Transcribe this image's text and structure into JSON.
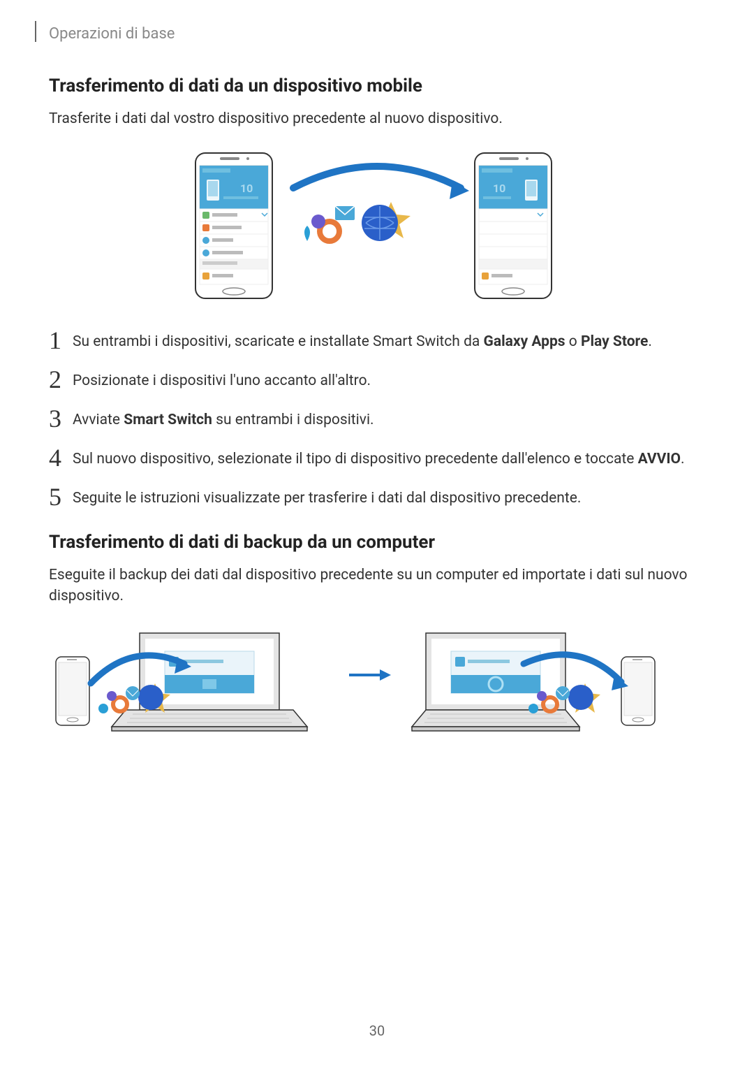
{
  "header": {
    "breadcrumb": "Operazioni di base"
  },
  "section1": {
    "title": "Trasferimento di dati da un dispositivo mobile",
    "intro": "Trasferite i dati dal vostro dispositivo precedente al nuovo dispositivo.",
    "steps": [
      {
        "num": "1",
        "parts": [
          "Su entrambi i dispositivi, scaricate e installate Smart Switch da ",
          {
            "bold": "Galaxy Apps"
          },
          " o ",
          {
            "bold": "Play Store"
          },
          "."
        ]
      },
      {
        "num": "2",
        "parts": [
          "Posizionate i dispositivi l'uno accanto all'altro."
        ]
      },
      {
        "num": "3",
        "parts": [
          "Avviate ",
          {
            "bold": "Smart Switch"
          },
          " su entrambi i dispositivi."
        ]
      },
      {
        "num": "4",
        "parts": [
          "Sul nuovo dispositivo, selezionate il tipo di dispositivo precedente dall'elenco e toccate ",
          {
            "bold": "AVVIO"
          },
          "."
        ]
      },
      {
        "num": "5",
        "parts": [
          "Seguite le istruzioni visualizzate per trasferire i dati dal dispositivo precedente."
        ]
      }
    ],
    "illustration": {
      "phone_stroke": "#333333",
      "phone_bg": "#ffffff",
      "screen_header_bg": "#4aa8d8",
      "screen_bg": "#eaf4fa",
      "row_bg": "#ffffff",
      "row_icon_colors": [
        "#6bb96b",
        "#e87a3a",
        "#4aa8d8",
        "#4aa8d8",
        "#cccccc",
        "#e8a23a"
      ],
      "arrow_color": "#1f74c4",
      "cluster_colors": {
        "globe": "#2a5fc9",
        "envelope": "#4aa8d8",
        "ring": "#e87a3a",
        "circle": "#6a5acd",
        "drop": "#2a9fd6",
        "leaf": "#e8b84a"
      }
    }
  },
  "section2": {
    "title": "Trasferimento di dati di backup da un computer",
    "intro": "Eseguite il backup dei dati dal dispositivo precedente su un computer ed importate i dati sul nuovo dispositivo.",
    "illustration": {
      "laptop_stroke": "#333333",
      "laptop_fill": "#e4e4e4",
      "screen_bg": "#ffffff",
      "app_bg": "#eaf4fa",
      "app_icon": "#4aa8d8",
      "arrow_color": "#1f74c4",
      "phone_stroke": "#333333"
    }
  },
  "page_number": "30"
}
